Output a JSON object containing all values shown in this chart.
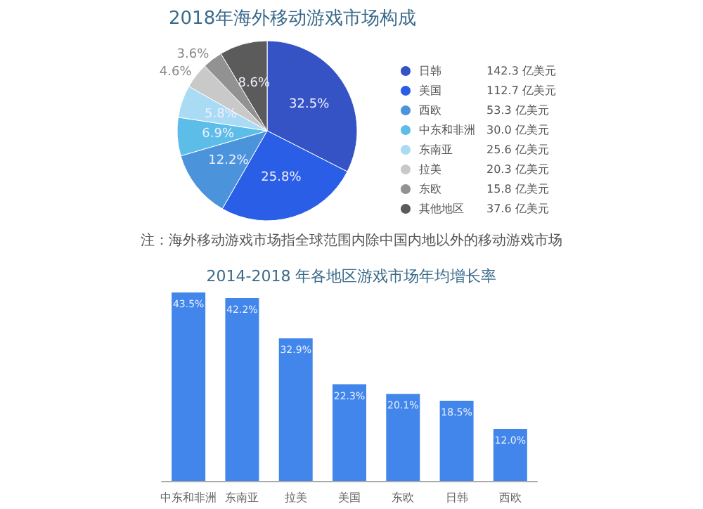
{
  "chart_data": [
    {
      "type": "pie",
      "title": "2018年海外移动游戏市场构成",
      "categories": [
        "日韩 142.3 亿美元",
        "美国 112.7 亿美元",
        "西欧 53.3 亿美元",
        "中东和非洲 30.0 亿美元",
        "东南亚 25.6 亿美元",
        "拉美 20.3 亿美元",
        "东欧 15.8 亿美元",
        "其他地区 37.6 亿美元"
      ],
      "values": [
        32.5,
        25.8,
        12.2,
        6.9,
        5.8,
        4.6,
        3.6,
        8.6
      ],
      "value_labels": [
        "32.5%",
        "25.8%",
        "12.2%",
        "6.9%",
        "5.8%",
        "4.6%",
        "3.6%",
        "8.6%"
      ],
      "colors": [
        "#3553c4",
        "#2a5ee6",
        "#4b94dc",
        "#5dbde9",
        "#a9dcf4",
        "#c9c9c9",
        "#929292",
        "#5b5b5b"
      ],
      "legend": "right",
      "annotations": [
        "注：海外移动游戏市场指全球范围内除中国内地以外的移动游戏市场"
      ]
    },
    {
      "type": "bar",
      "title": "2014-2018 年各地区游戏市场年均增长率",
      "categories": [
        "中东和非洲",
        "东南亚",
        "拉美",
        "美国",
        "东欧",
        "日韩",
        "西欧"
      ],
      "values": [
        43.5,
        42.2,
        32.9,
        22.3,
        20.1,
        18.5,
        12.0
      ],
      "value_labels": [
        "43.5%",
        "42.2%",
        "32.9%",
        "22.3%",
        "20.1%",
        "18.5%",
        "12.0%"
      ],
      "color": "#4286ec"
    }
  ]
}
